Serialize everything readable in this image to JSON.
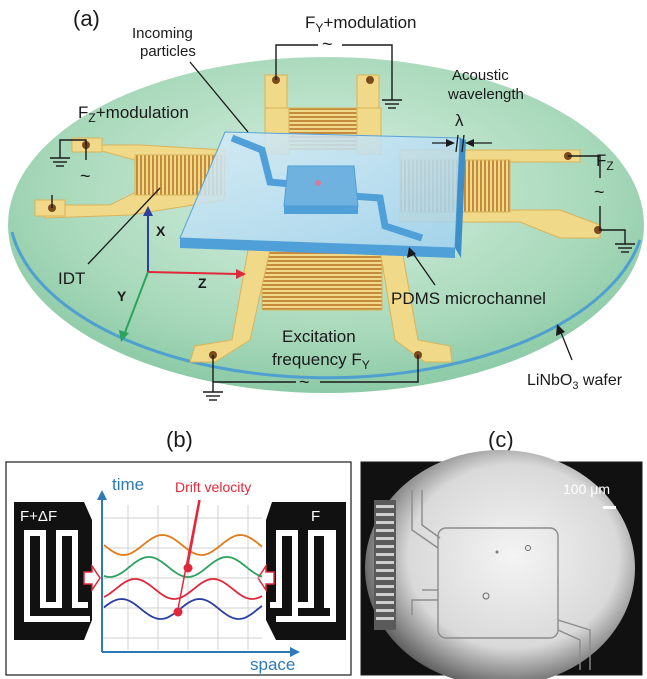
{
  "panel_a": {
    "tag": "(a)",
    "incoming_particles": [
      "Incoming",
      "particles"
    ],
    "fy_mod": {
      "main": "F",
      "sub": "Y",
      "rest": "+modulation"
    },
    "fz_mod": {
      "main": "F",
      "sub": "Z",
      "rest": "+modulation"
    },
    "acoustic": [
      "Acoustic",
      "wavelength"
    ],
    "lambda": "λ",
    "fz": {
      "main": "F",
      "sub": "Z"
    },
    "idt": "IDT",
    "axis_x": "X",
    "axis_y": "Y",
    "axis_z": "Z",
    "pdms": "PDMS microchannel",
    "excitation_line1": "Excitation",
    "excitation_line2_main": "frequency F",
    "excitation_line2_sub": "Y",
    "wafer": {
      "pre": "LiNbO",
      "sub": "3",
      "post": " wafer"
    },
    "tilde": "~"
  },
  "panel_b": {
    "tag": "(b)",
    "left_label": "F+ΔF",
    "right_label": "F",
    "time_label": "time",
    "space_label": "space",
    "drift_label": "Drift velocity",
    "wave_colors": [
      "#e07b1a",
      "#2ca25f",
      "#e0283a",
      "#2b3fa0"
    ]
  },
  "panel_c": {
    "tag": "(c)",
    "scale_label": "100 μm"
  },
  "colors": {
    "wafer": "#a9d9bb",
    "electrode": "#f1d98a",
    "electrode_edge": "#d8b458",
    "pdms": "#6fb2df",
    "arrow_red": "#e0283a",
    "axis_blue": "#2b3fa0",
    "axis_green": "#2ca25f",
    "axis_label_blue": "#2d7ab8"
  }
}
